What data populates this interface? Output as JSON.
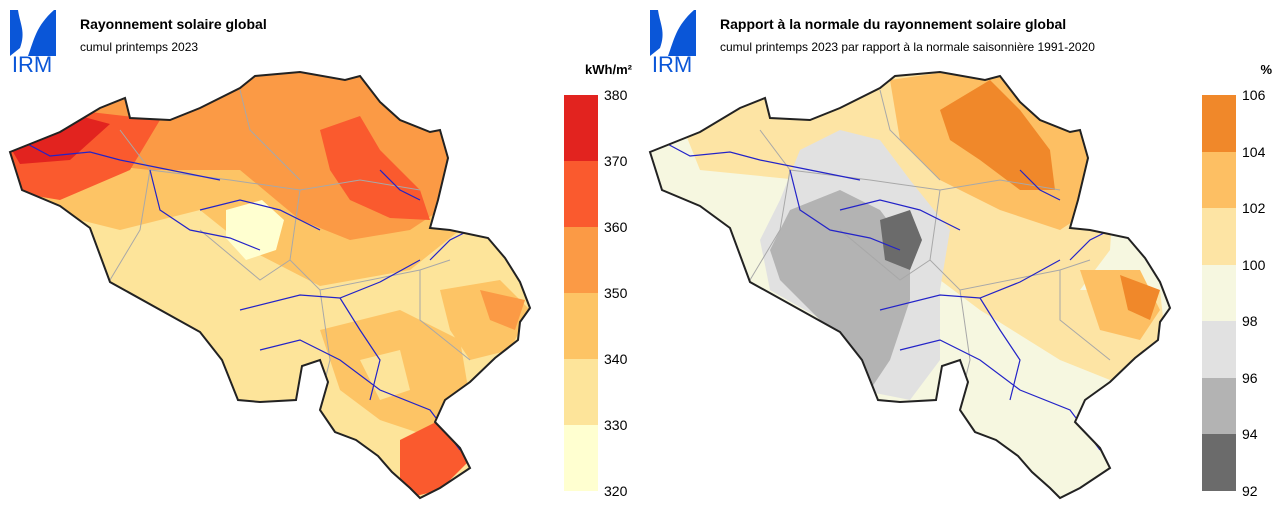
{
  "panels": [
    {
      "logo_text": "IRM",
      "title": "Rayonnement solaire global",
      "subtitle": "cumul printemps 2023",
      "unit": "kWh/m²",
      "legend": {
        "ticks": [
          "380",
          "370",
          "360",
          "350",
          "340",
          "330",
          "320"
        ],
        "colors": [
          "#e2231f",
          "#fa5a2e",
          "#fb9a45",
          "#fdc465",
          "#fde49a",
          "#ffffd0"
        ]
      }
    },
    {
      "logo_text": "IRM",
      "title": "Rapport à la normale du rayonnement solaire global",
      "subtitle": "cumul printemps 2023 par rapport à la normale saisonnière 1991-2020",
      "unit": "%",
      "legend": {
        "ticks": [
          "106",
          "104",
          "102",
          "100",
          "98",
          "96",
          "94",
          "92"
        ],
        "colors": [
          "#f0882a",
          "#fdbf63",
          "#fde4a4",
          "#f6f7e0",
          "#e1e1e1",
          "#b3b3b3",
          "#6b6b6b"
        ]
      }
    }
  ],
  "colors": {
    "logo_blue": "#0a56d8",
    "border": "#222222",
    "rivers": "#2323c8",
    "provinces": "#a8a8a8"
  }
}
